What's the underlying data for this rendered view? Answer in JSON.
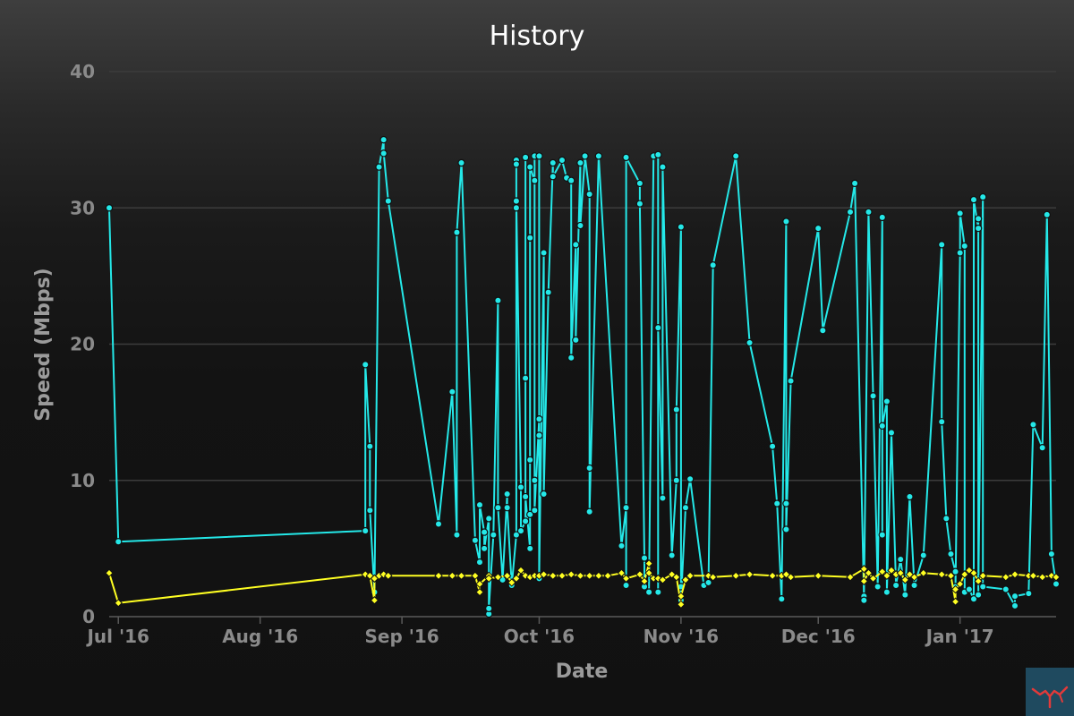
{
  "colors": {
    "download": "#24e8e8",
    "upload": "#ffff22",
    "marker_stroke": "#111111",
    "background": "#141414"
  },
  "chart_data": {
    "type": "line",
    "title": "History",
    "xlabel": "Date",
    "ylabel": "Speed (Mbps)",
    "ylim": [
      0,
      40
    ],
    "yticks": [
      0,
      10,
      20,
      30,
      40
    ],
    "xlim": [
      "2016-06-29",
      "2017-01-22"
    ],
    "xticks": [
      {
        "date": "2016-07-01",
        "label": "Jul '16"
      },
      {
        "date": "2016-08-01",
        "label": "Aug '16"
      },
      {
        "date": "2016-09-01",
        "label": "Sep '16"
      },
      {
        "date": "2016-10-01",
        "label": "Oct '16"
      },
      {
        "date": "2016-11-01",
        "label": "Nov '16"
      },
      {
        "date": "2016-12-01",
        "label": "Dec '16"
      },
      {
        "date": "2017-01-01",
        "label": "Jan '17"
      }
    ],
    "grid": true,
    "legend": false,
    "series": [
      {
        "color": "#24e8e8",
        "marker": "circle",
        "points": [
          [
            "2016-06-29",
            30.0
          ],
          [
            "2016-07-01",
            5.5
          ],
          [
            "2016-08-24",
            6.3
          ],
          [
            "2016-08-24",
            18.5
          ],
          [
            "2016-08-25",
            12.5
          ],
          [
            "2016-08-25",
            7.8
          ],
          [
            "2016-08-26",
            1.8
          ],
          [
            "2016-08-27",
            33.0
          ],
          [
            "2016-08-28",
            35.0
          ],
          [
            "2016-08-28",
            34.0
          ],
          [
            "2016-08-29",
            30.5
          ],
          [
            "2016-09-09",
            6.8
          ],
          [
            "2016-09-12",
            16.5
          ],
          [
            "2016-09-13",
            6.0
          ],
          [
            "2016-09-13",
            28.2
          ],
          [
            "2016-09-14",
            33.3
          ],
          [
            "2016-09-17",
            5.6
          ],
          [
            "2016-09-18",
            4.0
          ],
          [
            "2016-09-18",
            8.2
          ],
          [
            "2016-09-19",
            6.2
          ],
          [
            "2016-09-19",
            5.0
          ],
          [
            "2016-09-20",
            7.2
          ],
          [
            "2016-09-20",
            0.2
          ],
          [
            "2016-09-20",
            0.6
          ],
          [
            "2016-09-21",
            6.0
          ],
          [
            "2016-09-22",
            23.2
          ],
          [
            "2016-09-22",
            8.0
          ],
          [
            "2016-09-23",
            2.7
          ],
          [
            "2016-09-24",
            9.0
          ],
          [
            "2016-09-24",
            8.0
          ],
          [
            "2016-09-25",
            2.3
          ],
          [
            "2016-09-26",
            6.0
          ],
          [
            "2016-09-26",
            33.5
          ],
          [
            "2016-09-26",
            33.2
          ],
          [
            "2016-09-26",
            30.0
          ],
          [
            "2016-09-26",
            30.5
          ],
          [
            "2016-09-27",
            9.5
          ],
          [
            "2016-09-27",
            6.3
          ],
          [
            "2016-09-28",
            7.0
          ],
          [
            "2016-09-28",
            33.7
          ],
          [
            "2016-09-28",
            17.5
          ],
          [
            "2016-09-28",
            8.8
          ],
          [
            "2016-09-29",
            5.0
          ],
          [
            "2016-09-29",
            7.5
          ],
          [
            "2016-09-29",
            11.5
          ],
          [
            "2016-09-29",
            27.8
          ],
          [
            "2016-09-29",
            33.0
          ],
          [
            "2016-09-30",
            32.0
          ],
          [
            "2016-09-30",
            33.8
          ],
          [
            "2016-09-30",
            10.0
          ],
          [
            "2016-09-30",
            7.8
          ],
          [
            "2016-10-01",
            14.5
          ],
          [
            "2016-10-01",
            13.3
          ],
          [
            "2016-10-01",
            33.8
          ],
          [
            "2016-10-01",
            2.8
          ],
          [
            "2016-10-02",
            26.7
          ],
          [
            "2016-10-02",
            9.0
          ],
          [
            "2016-10-03",
            23.8
          ],
          [
            "2016-10-04",
            33.3
          ],
          [
            "2016-10-04",
            32.3
          ],
          [
            "2016-10-06",
            33.5
          ],
          [
            "2016-10-07",
            32.2
          ],
          [
            "2016-10-08",
            32.0
          ],
          [
            "2016-10-08",
            19.0
          ],
          [
            "2016-10-09",
            27.3
          ],
          [
            "2016-10-09",
            20.3
          ],
          [
            "2016-10-10",
            33.3
          ],
          [
            "2016-10-10",
            28.7
          ],
          [
            "2016-10-11",
            33.8
          ],
          [
            "2016-10-12",
            31.0
          ],
          [
            "2016-10-12",
            10.9
          ],
          [
            "2016-10-12",
            7.7
          ],
          [
            "2016-10-14",
            33.8
          ],
          [
            "2016-10-19",
            5.2
          ],
          [
            "2016-10-20",
            8.0
          ],
          [
            "2016-10-20",
            2.3
          ],
          [
            "2016-10-20",
            33.7
          ],
          [
            "2016-10-23",
            31.8
          ],
          [
            "2016-10-23",
            30.3
          ],
          [
            "2016-10-24",
            4.3
          ],
          [
            "2016-10-24",
            2.2
          ],
          [
            "2016-10-25",
            1.8
          ],
          [
            "2016-10-26",
            33.8
          ],
          [
            "2016-10-27",
            33.9
          ],
          [
            "2016-10-27",
            1.8
          ],
          [
            "2016-10-27",
            21.2
          ],
          [
            "2016-10-28",
            8.7
          ],
          [
            "2016-10-28",
            33.0
          ],
          [
            "2016-10-30",
            4.5
          ],
          [
            "2016-10-31",
            10.0
          ],
          [
            "2016-10-31",
            15.2
          ],
          [
            "2016-11-01",
            28.6
          ],
          [
            "2016-11-01",
            2.2
          ],
          [
            "2016-11-01",
            1.2
          ],
          [
            "2016-11-02",
            8.0
          ],
          [
            "2016-11-03",
            10.1
          ],
          [
            "2016-11-06",
            2.3
          ],
          [
            "2016-11-07",
            2.5
          ],
          [
            "2016-11-08",
            25.8
          ],
          [
            "2016-11-13",
            33.8
          ],
          [
            "2016-11-16",
            20.1
          ],
          [
            "2016-11-21",
            12.5
          ],
          [
            "2016-11-22",
            8.3
          ],
          [
            "2016-11-23",
            1.3
          ],
          [
            "2016-11-24",
            29.0
          ],
          [
            "2016-11-24",
            8.3
          ],
          [
            "2016-11-24",
            6.4
          ],
          [
            "2016-11-25",
            17.3
          ],
          [
            "2016-12-01",
            28.5
          ],
          [
            "2016-12-02",
            21.0
          ],
          [
            "2016-12-08",
            29.7
          ],
          [
            "2016-12-09",
            31.8
          ],
          [
            "2016-12-11",
            1.5
          ],
          [
            "2016-12-11",
            1.2
          ],
          [
            "2016-12-12",
            29.7
          ],
          [
            "2016-12-13",
            16.2
          ],
          [
            "2016-12-14",
            2.2
          ],
          [
            "2016-12-15",
            29.3
          ],
          [
            "2016-12-15",
            6.0
          ],
          [
            "2016-12-15",
            14.0
          ],
          [
            "2016-12-16",
            15.8
          ],
          [
            "2016-12-16",
            1.8
          ],
          [
            "2016-12-17",
            13.5
          ],
          [
            "2016-12-18",
            2.3
          ],
          [
            "2016-12-19",
            4.2
          ],
          [
            "2016-12-20",
            1.6
          ],
          [
            "2016-12-21",
            8.8
          ],
          [
            "2016-12-22",
            2.3
          ],
          [
            "2016-12-24",
            4.5
          ],
          [
            "2016-12-28",
            27.3
          ],
          [
            "2016-12-28",
            14.3
          ],
          [
            "2016-12-29",
            7.2
          ],
          [
            "2016-12-30",
            4.6
          ],
          [
            "2016-12-31",
            3.3
          ],
          [
            "2016-12-31",
            2.2
          ],
          [
            "2017-01-01",
            26.7
          ],
          [
            "2017-01-01",
            29.6
          ],
          [
            "2017-01-02",
            27.2
          ],
          [
            "2017-01-02",
            1.8
          ],
          [
            "2017-01-03",
            2.0
          ],
          [
            "2017-01-04",
            1.3
          ],
          [
            "2017-01-04",
            30.6
          ],
          [
            "2017-01-05",
            28.5
          ],
          [
            "2017-01-05",
            29.2
          ],
          [
            "2017-01-05",
            1.6
          ],
          [
            "2017-01-06",
            30.8
          ],
          [
            "2017-01-06",
            2.2
          ],
          [
            "2017-01-11",
            2.0
          ],
          [
            "2017-01-13",
            0.8
          ],
          [
            "2017-01-13",
            1.5
          ],
          [
            "2017-01-16",
            1.7
          ],
          [
            "2017-01-17",
            14.1
          ],
          [
            "2017-01-19",
            12.4
          ],
          [
            "2017-01-20",
            29.5
          ],
          [
            "2017-01-21",
            4.6
          ],
          [
            "2017-01-22",
            2.4
          ]
        ]
      },
      {
        "color": "#ffff22",
        "marker": "diamond",
        "points": [
          [
            "2016-06-29",
            3.2
          ],
          [
            "2016-07-01",
            1.0
          ],
          [
            "2016-08-24",
            3.1
          ],
          [
            "2016-08-25",
            3.0
          ],
          [
            "2016-08-26",
            1.2
          ],
          [
            "2016-08-26",
            2.8
          ],
          [
            "2016-08-27",
            3.0
          ],
          [
            "2016-08-28",
            3.1
          ],
          [
            "2016-08-29",
            3.0
          ],
          [
            "2016-09-09",
            3.0
          ],
          [
            "2016-09-12",
            3.0
          ],
          [
            "2016-09-14",
            3.0
          ],
          [
            "2016-09-17",
            3.0
          ],
          [
            "2016-09-18",
            1.8
          ],
          [
            "2016-09-18",
            2.4
          ],
          [
            "2016-09-20",
            3.0
          ],
          [
            "2016-09-20",
            2.8
          ],
          [
            "2016-09-22",
            2.9
          ],
          [
            "2016-09-24",
            3.0
          ],
          [
            "2016-09-25",
            2.5
          ],
          [
            "2016-09-26",
            2.8
          ],
          [
            "2016-09-27",
            3.4
          ],
          [
            "2016-09-28",
            3.0
          ],
          [
            "2016-09-29",
            2.9
          ],
          [
            "2016-09-30",
            3.0
          ],
          [
            "2016-10-01",
            3.0
          ],
          [
            "2016-10-02",
            3.1
          ],
          [
            "2016-10-04",
            3.0
          ],
          [
            "2016-10-06",
            3.0
          ],
          [
            "2016-10-08",
            3.1
          ],
          [
            "2016-10-10",
            3.0
          ],
          [
            "2016-10-12",
            3.0
          ],
          [
            "2016-10-14",
            3.0
          ],
          [
            "2016-10-16",
            3.0
          ],
          [
            "2016-10-19",
            3.2
          ],
          [
            "2016-10-20",
            2.8
          ],
          [
            "2016-10-23",
            3.1
          ],
          [
            "2016-10-24",
            2.6
          ],
          [
            "2016-10-25",
            3.9
          ],
          [
            "2016-10-25",
            3.2
          ],
          [
            "2016-10-26",
            2.8
          ],
          [
            "2016-10-27",
            2.8
          ],
          [
            "2016-10-28",
            2.7
          ],
          [
            "2016-10-30",
            3.1
          ],
          [
            "2016-10-31",
            2.9
          ],
          [
            "2016-11-01",
            0.9
          ],
          [
            "2016-11-01",
            1.5
          ],
          [
            "2016-11-02",
            2.7
          ],
          [
            "2016-11-03",
            3.0
          ],
          [
            "2016-11-07",
            3.0
          ],
          [
            "2016-11-08",
            2.9
          ],
          [
            "2016-11-13",
            3.0
          ],
          [
            "2016-11-16",
            3.1
          ],
          [
            "2016-11-21",
            3.0
          ],
          [
            "2016-11-23",
            3.0
          ],
          [
            "2016-11-24",
            3.1
          ],
          [
            "2016-11-25",
            2.9
          ],
          [
            "2016-12-01",
            3.0
          ],
          [
            "2016-12-08",
            2.9
          ],
          [
            "2016-12-11",
            3.5
          ],
          [
            "2016-12-11",
            2.6
          ],
          [
            "2016-12-12",
            3.2
          ],
          [
            "2016-12-13",
            2.8
          ],
          [
            "2016-12-15",
            3.3
          ],
          [
            "2016-12-16",
            3.0
          ],
          [
            "2016-12-17",
            3.4
          ],
          [
            "2016-12-18",
            3.1
          ],
          [
            "2016-12-19",
            3.2
          ],
          [
            "2016-12-20",
            2.7
          ],
          [
            "2016-12-21",
            3.1
          ],
          [
            "2016-12-22",
            2.9
          ],
          [
            "2016-12-24",
            3.2
          ],
          [
            "2016-12-28",
            3.1
          ],
          [
            "2016-12-30",
            3.0
          ],
          [
            "2016-12-31",
            1.1
          ],
          [
            "2016-12-31",
            2.0
          ],
          [
            "2017-01-01",
            2.4
          ],
          [
            "2017-01-02",
            3.1
          ],
          [
            "2017-01-03",
            3.4
          ],
          [
            "2017-01-04",
            3.2
          ],
          [
            "2017-01-05",
            2.6
          ],
          [
            "2017-01-06",
            3.0
          ],
          [
            "2017-01-11",
            2.9
          ],
          [
            "2017-01-13",
            3.1
          ],
          [
            "2017-01-16",
            3.0
          ],
          [
            "2017-01-17",
            3.0
          ],
          [
            "2017-01-19",
            2.9
          ],
          [
            "2017-01-21",
            3.0
          ],
          [
            "2017-01-22",
            2.9
          ]
        ]
      }
    ]
  }
}
